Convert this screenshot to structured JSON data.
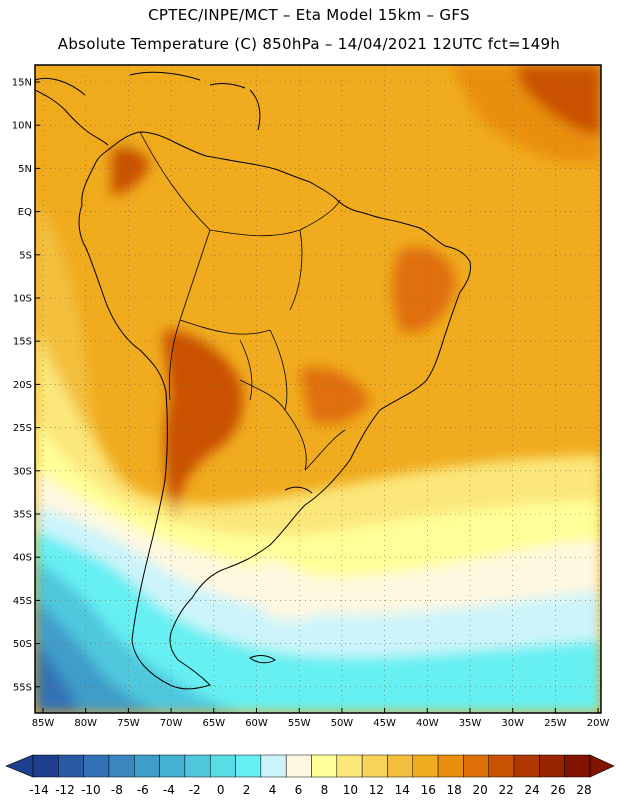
{
  "header": {
    "line1": "CPTEC/INPE/MCT –   Eta Model 15km – GFS",
    "line2": "Absolute Temperature (C) 850hPa – 14/04/2021 12UTC fct=149h"
  },
  "map": {
    "lat_labels": [
      "15N",
      "10N",
      "5N",
      "EQ",
      "5S",
      "10S",
      "15S",
      "20S",
      "25S",
      "30S",
      "35S",
      "40S",
      "45S",
      "50S",
      "55S"
    ],
    "lon_labels": [
      "85W",
      "80W",
      "75W",
      "70W",
      "65W",
      "60W",
      "55W",
      "50W",
      "45W",
      "40W",
      "35W",
      "30W",
      "25W",
      "20W"
    ]
  },
  "colorbar": {
    "labels": [
      "-14",
      "-12",
      "-10",
      "-8",
      "-6",
      "-4",
      "-2",
      "0",
      "2",
      "4",
      "6",
      "8",
      "10",
      "12",
      "14",
      "16",
      "18",
      "20",
      "22",
      "24",
      "26",
      "28"
    ],
    "colors": [
      "#1e3f8f",
      "#2a5aa6",
      "#3272b4",
      "#3a87c0",
      "#3f9dc9",
      "#45b2d3",
      "#4fc7dd",
      "#5adce7",
      "#66f0f2",
      "#ccf4fa",
      "#fff8e0",
      "#ffff99",
      "#fbe77a",
      "#f7d35a",
      "#f3bf3c",
      "#f0ab1e",
      "#e98f10",
      "#df7008",
      "#c95104",
      "#b13802",
      "#992401",
      "#801401"
    ]
  },
  "style": {
    "ocean_warm": "#f0ab1e",
    "coast": "#000000"
  }
}
